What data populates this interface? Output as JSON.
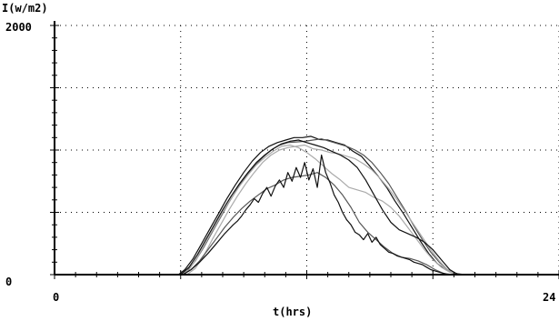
{
  "chart_data": {
    "type": "line",
    "title": "",
    "ylabel": "I(w/m2)",
    "xlabel": "t(hrs)",
    "xlim": [
      0,
      24
    ],
    "ylim": [
      0,
      2000
    ],
    "x_tick_labels": [
      "0",
      "24"
    ],
    "y_tick_labels": [
      "0",
      "2000"
    ],
    "x_major_ticks": [
      0,
      6,
      12,
      18,
      24
    ],
    "y_gridlines": [
      500,
      1000,
      1500
    ],
    "grid": "dotted",
    "legend": "none",
    "colors": {
      "axis": "#000000",
      "grid": "#000000",
      "series_dark": "#111111",
      "series_mid": "#555555",
      "series_light": "#aaaaaa"
    },
    "series": [
      {
        "color_role": "series_dark",
        "x": [
          5.9,
          6.2,
          6.6,
          7.0,
          7.4,
          7.8,
          8.2,
          8.6,
          9.0,
          9.4,
          9.8,
          10.2,
          10.6,
          11.0,
          11.4,
          11.8,
          12.2,
          12.6,
          13.0,
          13.4,
          13.8,
          14.2,
          14.6,
          15.0,
          15.4,
          15.8,
          16.2,
          16.6,
          17.0,
          17.4,
          17.8,
          18.2,
          18.6,
          19.0,
          19.4,
          19.8
        ],
        "y": [
          0,
          40,
          130,
          250,
          370,
          490,
          610,
          720,
          820,
          910,
          980,
          1030,
          1060,
          1080,
          1100,
          1100,
          1110,
          1085,
          1080,
          1060,
          1040,
          990,
          950,
          870,
          790,
          700,
          590,
          490,
          380,
          270,
          170,
          90,
          40,
          10,
          0,
          0
        ]
      },
      {
        "color_role": "series_mid",
        "x": [
          5.9,
          6.3,
          6.7,
          7.1,
          7.5,
          7.9,
          8.3,
          8.7,
          9.1,
          9.5,
          9.9,
          10.3,
          10.7,
          11.1,
          11.5,
          11.9,
          12.3,
          12.7,
          13.1,
          13.5,
          13.9,
          14.3,
          14.7,
          15.1,
          15.5,
          15.9,
          16.3,
          16.7,
          17.1,
          17.5,
          17.9,
          18.3,
          18.7,
          19.1,
          19.5
        ],
        "y": [
          0,
          30,
          110,
          220,
          340,
          460,
          580,
          690,
          790,
          870,
          940,
          1000,
          1040,
          1060,
          1065,
          1070,
          1080,
          1090,
          1070,
          1050,
          1030,
          1000,
          960,
          900,
          820,
          730,
          620,
          510,
          390,
          280,
          180,
          100,
          40,
          10,
          0
        ]
      },
      {
        "color_role": "series_light",
        "x": [
          6.3,
          6.7,
          7.1,
          7.5,
          7.9,
          8.3,
          8.7,
          9.1,
          9.5,
          9.9,
          10.3,
          10.7,
          11.1,
          11.5,
          11.9,
          12.3,
          12.7,
          13.1,
          13.5,
          13.9,
          14.3,
          14.7,
          15.1,
          15.5,
          15.9,
          16.3,
          16.7,
          17.1,
          17.5,
          17.9,
          18.3,
          18.7,
          19.1
        ],
        "y": [
          0,
          50,
          150,
          280,
          400,
          520,
          630,
          730,
          820,
          900,
          960,
          1000,
          1020,
          1030,
          1040,
          1010,
          1000,
          980,
          970,
          950,
          930,
          890,
          840,
          770,
          690,
          600,
          500,
          400,
          300,
          200,
          110,
          40,
          0
        ]
      },
      {
        "color_role": "series_light",
        "x": [
          6.0,
          6.4,
          6.8,
          7.2,
          7.6,
          8.0,
          8.4,
          8.8,
          9.2,
          9.6,
          10.0,
          10.4,
          10.8,
          11.2,
          11.6,
          12.0,
          12.4,
          12.8,
          13.2,
          13.6,
          14.0,
          14.4,
          14.8,
          15.2,
          15.6,
          16.0,
          16.4,
          16.8,
          17.2,
          17.6,
          18.0,
          18.4,
          18.8,
          19.2
        ],
        "y": [
          0,
          40,
          140,
          260,
          380,
          500,
          610,
          710,
          800,
          880,
          940,
          990,
          1030,
          1040,
          1020,
          980,
          930,
          870,
          810,
          760,
          700,
          680,
          660,
          620,
          590,
          540,
          470,
          380,
          290,
          200,
          120,
          60,
          20,
          0
        ]
      },
      {
        "color_role": "series_dark",
        "x": [
          6.0,
          6.4,
          6.8,
          7.2,
          7.6,
          8.0,
          8.4,
          8.8,
          9.2,
          9.6,
          10.0,
          10.4,
          10.8,
          11.2,
          11.6,
          12.0,
          12.4,
          12.8,
          13.2,
          13.6,
          14.0,
          14.4,
          14.8,
          15.2,
          15.6,
          16.0,
          16.4,
          16.8,
          17.2,
          17.6,
          18.0,
          18.4,
          18.8,
          19.2
        ],
        "y": [
          0,
          60,
          160,
          280,
          400,
          520,
          630,
          730,
          820,
          900,
          960,
          1010,
          1050,
          1070,
          1080,
          1060,
          1040,
          1020,
          990,
          960,
          920,
          860,
          760,
          640,
          520,
          420,
          360,
          330,
          300,
          260,
          200,
          120,
          40,
          0
        ]
      },
      {
        "color_role": "series_mid",
        "x": [
          6.1,
          6.5,
          6.9,
          7.3,
          7.7,
          8.1,
          8.5,
          8.9,
          9.3,
          9.7,
          10.1,
          10.5,
          10.9,
          11.3,
          11.7,
          12.1,
          12.5,
          12.9,
          13.3,
          13.7,
          14.1,
          14.5,
          14.9,
          15.3,
          15.7,
          16.1,
          16.5,
          16.9,
          17.3,
          17.7,
          18.1,
          18.5,
          18.9
        ],
        "y": [
          0,
          40,
          110,
          200,
          290,
          380,
          460,
          530,
          590,
          640,
          690,
          720,
          760,
          780,
          790,
          800,
          820,
          780,
          720,
          640,
          540,
          420,
          340,
          280,
          220,
          170,
          140,
          130,
          110,
          80,
          40,
          10,
          0
        ]
      },
      {
        "color_role": "series_dark",
        "x": [
          6.1,
          6.5,
          6.9,
          7.3,
          7.7,
          8.1,
          8.5,
          8.7,
          8.9,
          9.1,
          9.3,
          9.5,
          9.7,
          9.9,
          10.1,
          10.3,
          10.5,
          10.7,
          10.9,
          11.1,
          11.3,
          11.5,
          11.7,
          11.9,
          12.1,
          12.3,
          12.5,
          12.7,
          12.9,
          13.1,
          13.3,
          13.5,
          13.7,
          13.9,
          14.1,
          14.3,
          14.5,
          14.7,
          14.9,
          15.1,
          15.3,
          15.5,
          15.7,
          15.9,
          16.1,
          16.3,
          16.5,
          16.7,
          16.9,
          17.1,
          17.3,
          17.5,
          17.7,
          17.9,
          18.1,
          18.3,
          18.5,
          18.7
        ],
        "y": [
          0,
          40,
          100,
          170,
          250,
          330,
          400,
          430,
          470,
          520,
          560,
          610,
          580,
          650,
          700,
          630,
          710,
          760,
          700,
          820,
          750,
          860,
          780,
          900,
          760,
          850,
          700,
          960,
          820,
          740,
          640,
          580,
          500,
          440,
          400,
          340,
          320,
          280,
          330,
          260,
          300,
          240,
          210,
          180,
          170,
          150,
          140,
          130,
          120,
          100,
          90,
          80,
          60,
          40,
          30,
          20,
          10,
          0
        ]
      }
    ]
  }
}
